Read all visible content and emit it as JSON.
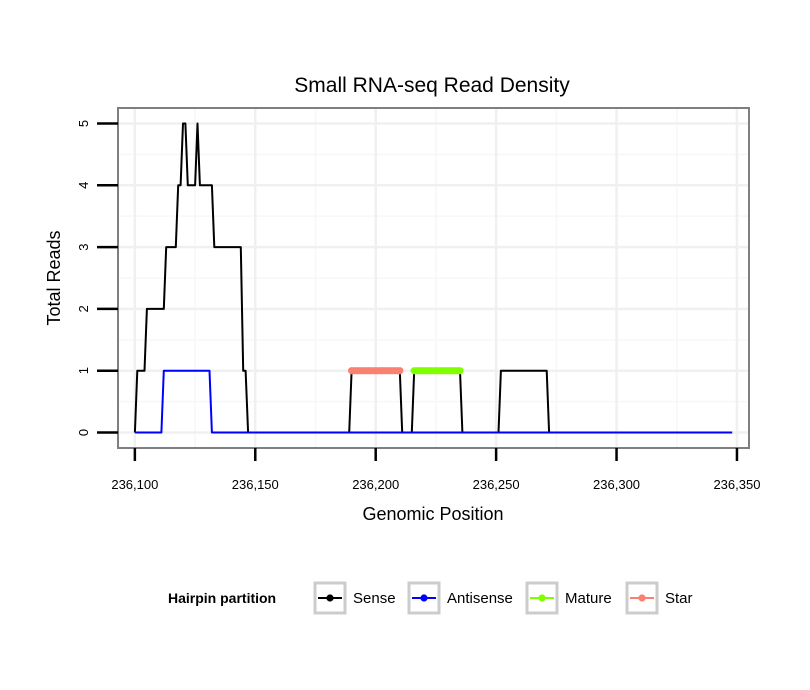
{
  "chart_data": {
    "type": "line",
    "title": "Small RNA-seq Read Density",
    "xlabel": "Genomic Position",
    "ylabel": "Total Reads",
    "xlim": [
      236093,
      236355
    ],
    "ylim": [
      -0.25,
      5.25
    ],
    "x_ticks": [
      236100,
      236150,
      236200,
      236250,
      236300,
      236350
    ],
    "x_tick_labels": [
      "236,100",
      "236,150",
      "236,200",
      "236,250",
      "236,300",
      "236,350"
    ],
    "y_ticks": [
      0,
      1,
      2,
      3,
      4,
      5
    ],
    "y_tick_labels": [
      "0",
      "1",
      "2",
      "3",
      "4",
      "5"
    ],
    "grid": true,
    "legend": {
      "title": "Hairpin partition",
      "position": "bottom",
      "items": [
        {
          "label": "Sense",
          "color": "#000000"
        },
        {
          "label": "Antisense",
          "color": "#0000ff"
        },
        {
          "label": "Mature",
          "color": "#7fff00"
        },
        {
          "label": "Star",
          "color": "#fa8072"
        }
      ]
    },
    "series": [
      {
        "name": "Sense",
        "color": "#000000",
        "marker": false,
        "points": [
          [
            236100,
            0
          ],
          [
            236101,
            1
          ],
          [
            236104,
            1
          ],
          [
            236105,
            2
          ],
          [
            236112,
            2
          ],
          [
            236113,
            3
          ],
          [
            236117,
            3
          ],
          [
            236118,
            4
          ],
          [
            236119,
            4
          ],
          [
            236120,
            5
          ],
          [
            236121,
            5
          ],
          [
            236122,
            4
          ],
          [
            236125,
            4
          ],
          [
            236126,
            5
          ],
          [
            236127,
            4
          ],
          [
            236132,
            4
          ],
          [
            236133,
            3
          ],
          [
            236144,
            3
          ],
          [
            236145,
            1
          ],
          [
            236146,
            1
          ],
          [
            236147,
            0
          ],
          [
            236189,
            0
          ],
          [
            236190,
            1
          ],
          [
            236210,
            1
          ],
          [
            236211,
            0
          ],
          [
            236215,
            0
          ],
          [
            236216,
            1
          ],
          [
            236235,
            1
          ],
          [
            236236,
            0
          ],
          [
            236251,
            0
          ],
          [
            236252,
            1
          ],
          [
            236271,
            1
          ],
          [
            236272,
            0
          ],
          [
            236348,
            0
          ]
        ]
      },
      {
        "name": "Antisense",
        "color": "#0000ff",
        "marker": false,
        "points": [
          [
            236100,
            0
          ],
          [
            236111,
            0
          ],
          [
            236112,
            1
          ],
          [
            236131,
            1
          ],
          [
            236132,
            0
          ],
          [
            236348,
            0
          ]
        ]
      },
      {
        "name": "Star",
        "color": "#fa8072",
        "marker": true,
        "x_range": [
          236190,
          236210
        ],
        "value": 1
      },
      {
        "name": "Mature",
        "color": "#7fff00",
        "marker": true,
        "x_range": [
          236216,
          236235
        ],
        "value": 1
      }
    ]
  }
}
